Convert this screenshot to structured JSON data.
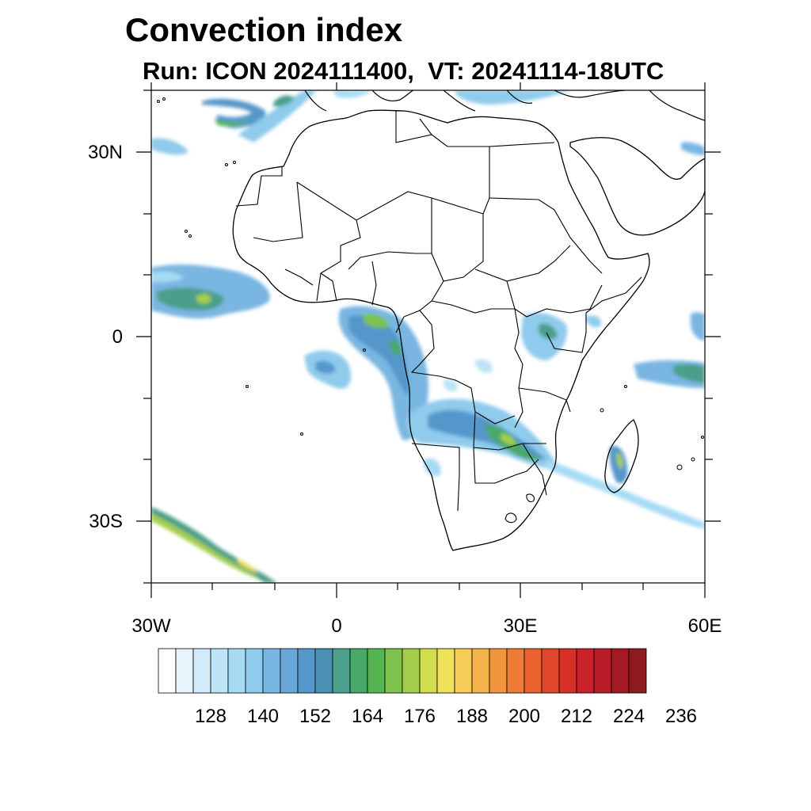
{
  "header": {
    "title": "Convection index",
    "subtitle": "Run: ICON 2024111400,  VT: 20241114-18UTC"
  },
  "axes": {
    "lat_labels": [
      "30N",
      "0",
      "30S"
    ],
    "lon_labels": [
      "30W",
      "0",
      "30E",
      "60E"
    ]
  },
  "colorbar": {
    "tick_labels": [
      "128",
      "140",
      "152",
      "164",
      "176",
      "188",
      "200",
      "212",
      "224",
      "236"
    ],
    "colors": [
      "#ffffff",
      "#e8f4fc",
      "#d2ebf8",
      "#bde3f6",
      "#a7dbf4",
      "#8fcbec",
      "#79b6e2",
      "#6aa7d9",
      "#5597cb",
      "#4a90b3",
      "#4c9f8a",
      "#48a86a",
      "#55b552",
      "#7cc24c",
      "#a5cd4c",
      "#d2dc4f",
      "#eee25a",
      "#f7cd57",
      "#f4b44b",
      "#f2953f",
      "#ee7b36",
      "#e8612f",
      "#e0472c",
      "#d73028",
      "#c8222a",
      "#b71c27",
      "#a41a22",
      "#8c1a1e"
    ]
  }
}
